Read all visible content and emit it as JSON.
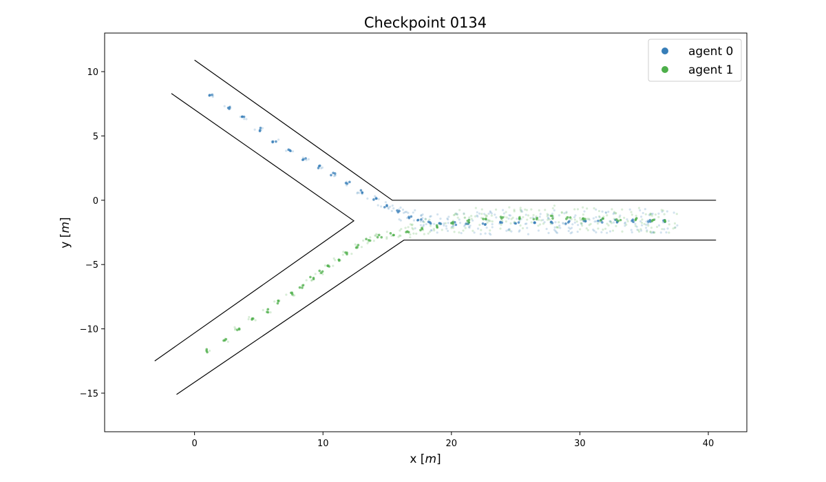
{
  "chart_data": {
    "type": "scatter",
    "title": "Checkpoint 0134",
    "xlabel_text": "x [",
    "xlabel_var": "m",
    "xlabel_close": "]",
    "ylabel_text": "y [",
    "ylabel_var": "m",
    "ylabel_close": "]",
    "xlim": [
      -7,
      43
    ],
    "ylim": [
      -18,
      13
    ],
    "xticks": [
      0,
      10,
      20,
      30,
      40
    ],
    "yticks": [
      10,
      5,
      0,
      -5,
      -10,
      -15
    ],
    "xtick_labels": [
      "0",
      "10",
      "20",
      "30",
      "40"
    ],
    "ytick_labels": [
      "10",
      "5",
      "0",
      "−5",
      "−10",
      "−15"
    ],
    "grid": false,
    "legend_position": "top-right",
    "walls": [
      [
        [
          0,
          10.9
        ],
        [
          15.4,
          0
        ],
        [
          40.6,
          0
        ]
      ],
      [
        [
          -1.8,
          8.3
        ],
        [
          12.4,
          -1.6
        ],
        [
          -3.1,
          -12.5
        ]
      ],
      [
        [
          -1.4,
          -15.1
        ],
        [
          16.3,
          -3.1
        ],
        [
          40.6,
          -3.1
        ]
      ]
    ],
    "series": [
      {
        "name": "agent 0",
        "color": "#377eb8",
        "x": [
          1.3,
          2.6,
          3.8,
          5.0,
          6.2,
          7.4,
          8.5,
          9.7,
          10.8,
          11.9,
          12.9,
          14.0,
          14.9,
          15.8,
          16.7,
          17.5,
          18.3,
          19.2,
          20.2,
          21.2,
          22.5,
          23.8,
          25.1,
          26.4,
          27.7,
          29.0,
          30.3,
          31.6,
          32.9,
          34.2,
          35.5,
          36.6
        ],
        "y": [
          8.1,
          7.2,
          6.4,
          5.5,
          4.6,
          3.9,
          3.2,
          2.6,
          2.0,
          1.3,
          0.7,
          0.1,
          -0.5,
          -0.9,
          -1.3,
          -1.6,
          -1.7,
          -1.8,
          -1.8,
          -1.8,
          -1.8,
          -1.8,
          -1.7,
          -1.7,
          -1.7,
          -1.7,
          -1.7,
          -1.6,
          -1.6,
          -1.6,
          -1.6,
          -1.6
        ]
      },
      {
        "name": "agent 1",
        "color": "#4daf4a",
        "x": [
          1.1,
          2.3,
          3.5,
          4.6,
          5.6,
          6.6,
          7.5,
          8.3,
          9.1,
          9.8,
          10.5,
          11.2,
          11.9,
          12.7,
          13.5,
          14.4,
          15.4,
          16.5,
          17.6,
          18.8,
          20.0,
          21.3,
          22.6,
          23.9,
          25.2,
          26.5,
          27.8,
          29.1,
          30.4,
          31.7,
          33.0,
          34.3,
          35.6,
          36.6
        ],
        "y": [
          -11.7,
          -10.9,
          -10.0,
          -9.2,
          -8.6,
          -7.9,
          -7.3,
          -6.7,
          -6.1,
          -5.6,
          -5.1,
          -4.6,
          -4.1,
          -3.6,
          -3.1,
          -2.8,
          -2.6,
          -2.4,
          -2.2,
          -2.0,
          -1.8,
          -1.6,
          -1.5,
          -1.4,
          -1.4,
          -1.4,
          -1.3,
          -1.4,
          -1.4,
          -1.5,
          -1.5,
          -1.5,
          -1.6,
          -1.6
        ]
      }
    ]
  }
}
